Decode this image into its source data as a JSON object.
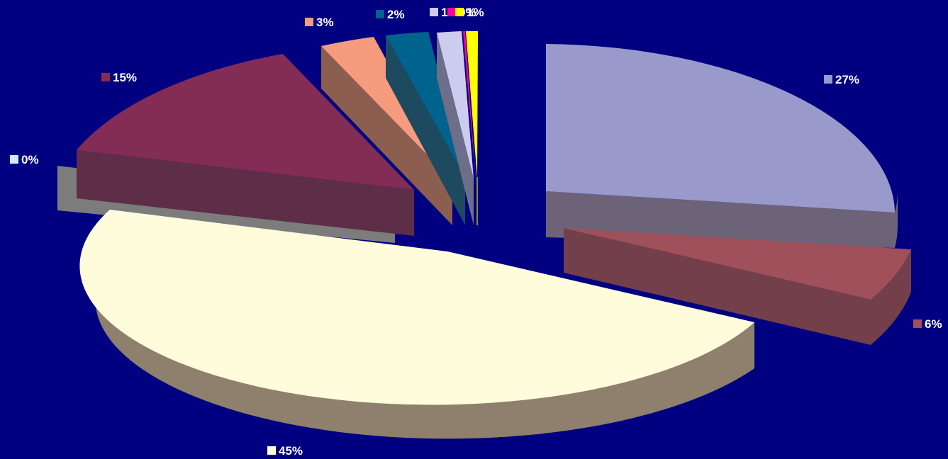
{
  "chart_data": {
    "type": "pie",
    "style": "3d-exploded",
    "title": "",
    "legend": "none",
    "slices": [
      {
        "label": "27%",
        "value": 27,
        "color": "#9999CC"
      },
      {
        "label": "6%",
        "value": 6,
        "color": "#A0505A"
      },
      {
        "label": "45%",
        "value": 45,
        "color": "#FFFCDC"
      },
      {
        "label": "0%",
        "value": 0,
        "color": "#CCECFF"
      },
      {
        "label": "15%",
        "value": 15,
        "color": "#832C56"
      },
      {
        "label": "3%",
        "value": 3,
        "color": "#F79B7E"
      },
      {
        "label": "2%",
        "value": 2,
        "color": "#00638E"
      },
      {
        "label": "1%",
        "value": 1,
        "color": "#CCCCEE"
      },
      {
        "label": "0%",
        "value": 0,
        "color": "#FF0099"
      },
      {
        "label": "1%",
        "value": 1,
        "color": "#FFFF00"
      }
    ]
  }
}
